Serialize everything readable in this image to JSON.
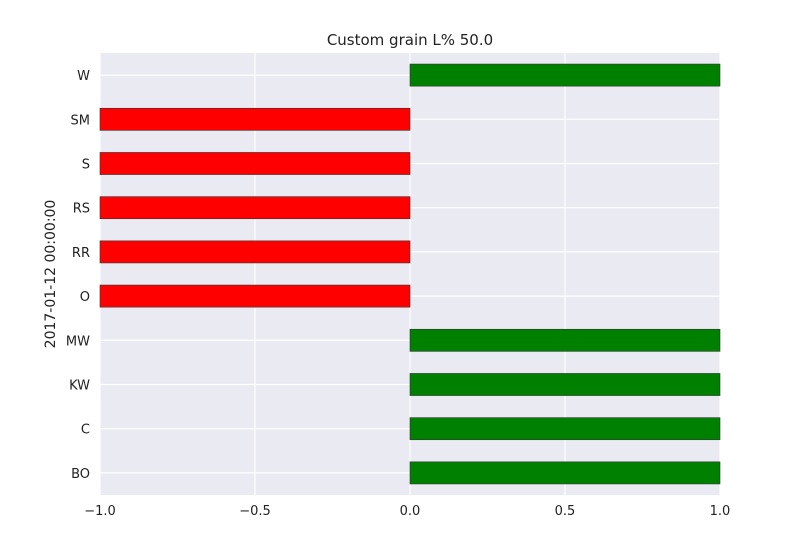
{
  "chart_data": {
    "type": "bar",
    "orientation": "horizontal",
    "title": "Custom grain L% 50.0",
    "ylabel": "2017-01-12 00:00:00",
    "xlabel": "",
    "categories": [
      "W",
      "SM",
      "S",
      "RS",
      "RR",
      "O",
      "MW",
      "KW",
      "C",
      "BO"
    ],
    "values": [
      1.0,
      -1.0,
      -1.0,
      -1.0,
      -1.0,
      -1.0,
      1.0,
      1.0,
      1.0,
      1.0
    ],
    "xlim": [
      -1.0,
      1.0
    ],
    "xticks": [
      -1.0,
      -0.5,
      0.0,
      0.5,
      1.0
    ],
    "xtick_labels": [
      "−1.0",
      "−0.5",
      "0.0",
      "0.5",
      "1.0"
    ],
    "grid": true,
    "legend": "none",
    "colors": {
      "positive": "#008000",
      "negative": "#ff0000",
      "plot_background": "#eaeaf2",
      "grid": "#ffffff",
      "bar_edge": "#333333"
    }
  }
}
